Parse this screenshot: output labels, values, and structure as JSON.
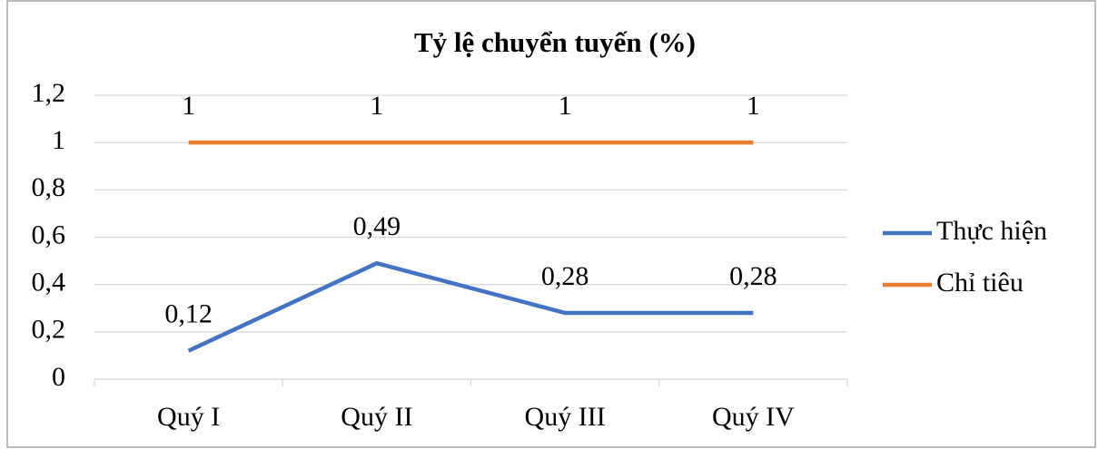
{
  "chart_data": {
    "type": "line",
    "title": "Tỷ lệ chuyển tuyến (%)",
    "categories": [
      "Quý I",
      "Quý II",
      "Quý III",
      "Quý IV"
    ],
    "series": [
      {
        "name": "Thực hiện",
        "color": "#4472c4",
        "values": [
          0.12,
          0.49,
          0.28,
          0.28
        ],
        "value_labels": [
          "0,12",
          "0,49",
          "0,28",
          "0,28"
        ]
      },
      {
        "name": "Chỉ tiêu",
        "color": "#ed7d31",
        "values": [
          1,
          1,
          1,
          1
        ]
      }
    ],
    "ylim": [
      0,
      1.2
    ],
    "yticks": [
      0,
      {
        "value": 0.2,
        "label": "0,2"
      },
      {
        "value": 0.4,
        "label": "0,4"
      },
      {
        "value": 0.6,
        "label": "0,6"
      },
      {
        "value": 0.8,
        "label": "0,8"
      },
      1,
      {
        "value": 1.2,
        "label": "1,2"
      }
    ],
    "grid": true,
    "legend": "right"
  }
}
